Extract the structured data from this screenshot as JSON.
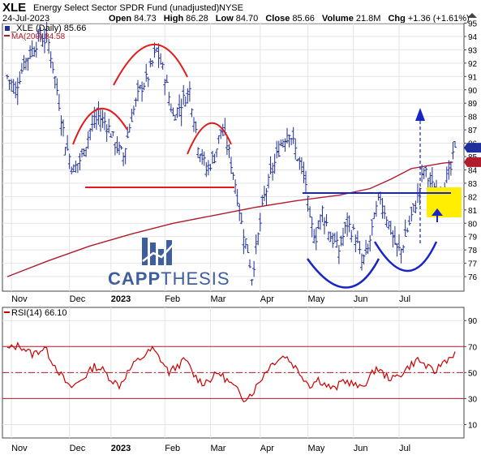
{
  "header": {
    "symbol": "XLE",
    "fund_name": "Energy Select Sector SPDR Fund (unadjusted)",
    "exchange": "NYSE",
    "date": "24-Jul-2023",
    "open_label": "Open",
    "open": "84.73",
    "high_label": "High",
    "high": "86.28",
    "low_label": "Low",
    "low": "84.70",
    "close_label": "Close",
    "close": "85.66",
    "volume_label": "Volume",
    "volume": "21.8M",
    "chg_label": "Chg",
    "chg": "+1.36 (+1.61%)"
  },
  "legend": {
    "price": "_XLE (Daily) 85.66",
    "ma": "MA(200) 84.58",
    "rsi": "RSI(14) 66.10"
  },
  "watermark": {
    "text_bold": "CAPP",
    "text_light": "THESIS"
  },
  "colors": {
    "bars": "#1f2f9c",
    "ma": "#b01c2b",
    "pattern_red": "#e31b1b",
    "pattern_blue": "#1725c8",
    "highlight": "#ffee00",
    "rsi": "#cc0000",
    "logo_blue": "#3f5e9e"
  },
  "chart_data": [
    {
      "type": "ohlc",
      "ylim": [
        75,
        95
      ],
      "y_ticks": [
        76,
        77,
        78,
        79,
        80,
        81,
        82,
        83,
        84,
        85,
        86,
        87,
        88,
        89,
        90,
        91,
        92,
        93,
        94,
        95
      ],
      "x_tick_labels": [
        "Nov",
        "Dec",
        "2023",
        "Feb",
        "Mar",
        "Apr",
        "May",
        "Jun",
        "Jul"
      ],
      "last_close": 85.66,
      "ma200": {
        "name": "MA(200)",
        "values": [
          [
            0,
            76.0
          ],
          [
            20,
            77.2
          ],
          [
            40,
            78.3
          ],
          [
            60,
            79.2
          ],
          [
            80,
            80.0
          ],
          [
            100,
            80.6
          ],
          [
            120,
            81.2
          ],
          [
            140,
            81.7
          ],
          [
            160,
            82.1
          ],
          [
            175,
            82.6
          ],
          [
            185,
            83.3
          ],
          [
            195,
            84.1
          ],
          [
            210,
            84.5
          ],
          [
            215,
            84.58
          ]
        ]
      },
      "close_path": [
        [
          0,
          91
        ],
        [
          4,
          90
        ],
        [
          8,
          92
        ],
        [
          12,
          93
        ],
        [
          16,
          94
        ],
        [
          20,
          93.5
        ],
        [
          24,
          90
        ],
        [
          28,
          86
        ],
        [
          32,
          84
        ],
        [
          36,
          85
        ],
        [
          40,
          87
        ],
        [
          44,
          88
        ],
        [
          48,
          87.5
        ],
        [
          52,
          86
        ],
        [
          56,
          85
        ],
        [
          60,
          88
        ],
        [
          64,
          90
        ],
        [
          68,
          91
        ],
        [
          72,
          93
        ],
        [
          76,
          91
        ],
        [
          80,
          88
        ],
        [
          84,
          89
        ],
        [
          88,
          90
        ],
        [
          90,
          88
        ],
        [
          92,
          86
        ],
        [
          96,
          84
        ],
        [
          100,
          85
        ],
        [
          103,
          87
        ],
        [
          106,
          86
        ],
        [
          110,
          83
        ],
        [
          113,
          80
        ],
        [
          116,
          78
        ],
        [
          118,
          76
        ],
        [
          121,
          79
        ],
        [
          124,
          82
        ],
        [
          128,
          84
        ],
        [
          132,
          86
        ],
        [
          136,
          87
        ],
        [
          140,
          85
        ],
        [
          144,
          83
        ],
        [
          146,
          80
        ],
        [
          149,
          79
        ],
        [
          152,
          81
        ],
        [
          156,
          79
        ],
        [
          160,
          78
        ],
        [
          164,
          80
        ],
        [
          168,
          79
        ],
        [
          171,
          77
        ],
        [
          174,
          78
        ],
        [
          178,
          81
        ],
        [
          180,
          82
        ],
        [
          184,
          80
        ],
        [
          188,
          78
        ],
        [
          190,
          78
        ],
        [
          194,
          80
        ],
        [
          198,
          82
        ],
        [
          201,
          84
        ],
        [
          204,
          83
        ],
        [
          208,
          82
        ],
        [
          211,
          83
        ],
        [
          214,
          84
        ],
        [
          216,
          85.7
        ]
      ]
    },
    {
      "type": "line",
      "name": "RSI(14)",
      "ylim": [
        0,
        100
      ],
      "y_ticks": [
        10,
        30,
        50,
        70,
        90
      ],
      "reference_lines": [
        30,
        50,
        70
      ],
      "last_value": 66.1,
      "values": [
        [
          0,
          68
        ],
        [
          6,
          71
        ],
        [
          12,
          64
        ],
        [
          18,
          69
        ],
        [
          22,
          58
        ],
        [
          26,
          48
        ],
        [
          30,
          38
        ],
        [
          34,
          42
        ],
        [
          38,
          48
        ],
        [
          42,
          55
        ],
        [
          46,
          52
        ],
        [
          50,
          45
        ],
        [
          54,
          40
        ],
        [
          58,
          50
        ],
        [
          62,
          58
        ],
        [
          66,
          63
        ],
        [
          70,
          68
        ],
        [
          74,
          60
        ],
        [
          78,
          50
        ],
        [
          82,
          55
        ],
        [
          86,
          60
        ],
        [
          90,
          48
        ],
        [
          94,
          42
        ],
        [
          98,
          45
        ],
        [
          102,
          50
        ],
        [
          106,
          44
        ],
        [
          110,
          38
        ],
        [
          114,
          30
        ],
        [
          118,
          34
        ],
        [
          122,
          44
        ],
        [
          126,
          54
        ],
        [
          130,
          60
        ],
        [
          134,
          63
        ],
        [
          138,
          56
        ],
        [
          142,
          48
        ],
        [
          146,
          40
        ],
        [
          150,
          45
        ],
        [
          154,
          40
        ],
        [
          158,
          37
        ],
        [
          162,
          44
        ],
        [
          166,
          42
        ],
        [
          170,
          38
        ],
        [
          174,
          44
        ],
        [
          178,
          54
        ],
        [
          182,
          48
        ],
        [
          186,
          45
        ],
        [
          190,
          49
        ],
        [
          194,
          55
        ],
        [
          198,
          60
        ],
        [
          202,
          55
        ],
        [
          206,
          50
        ],
        [
          210,
          58
        ],
        [
          214,
          62
        ],
        [
          216,
          66.1
        ]
      ]
    }
  ]
}
